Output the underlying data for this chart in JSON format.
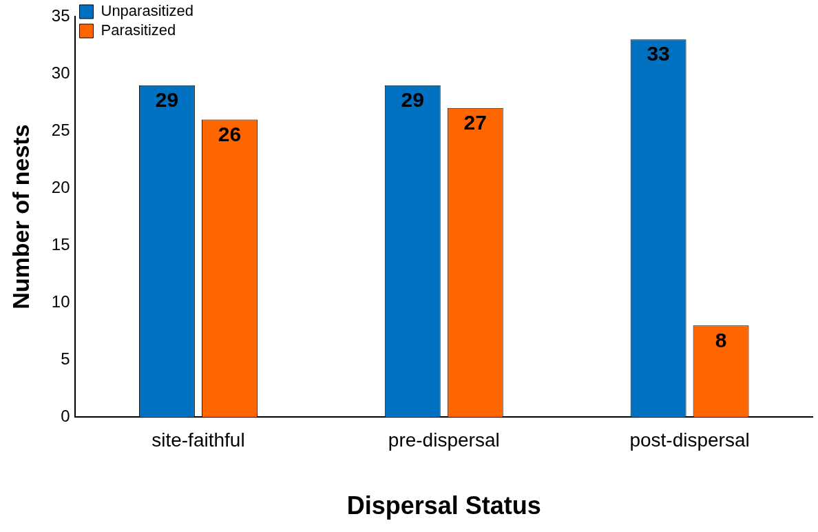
{
  "chart_data": {
    "type": "bar",
    "xlabel": "Dispersal Status",
    "ylabel": "Number of nests",
    "categories": [
      "site-faithful",
      "pre-dispersal",
      "post-dispersal"
    ],
    "series": [
      {
        "name": "Unparasitized",
        "color": "#0070c0",
        "values": [
          29,
          29,
          33
        ]
      },
      {
        "name": "Parasitized",
        "color": "#ff6600",
        "values": [
          26,
          27,
          8
        ]
      }
    ],
    "ylim": [
      0,
      35
    ],
    "yticks": [
      0,
      5,
      10,
      15,
      20,
      25,
      30,
      35
    ],
    "grid": false,
    "legend": "top left",
    "data_labels": true
  }
}
